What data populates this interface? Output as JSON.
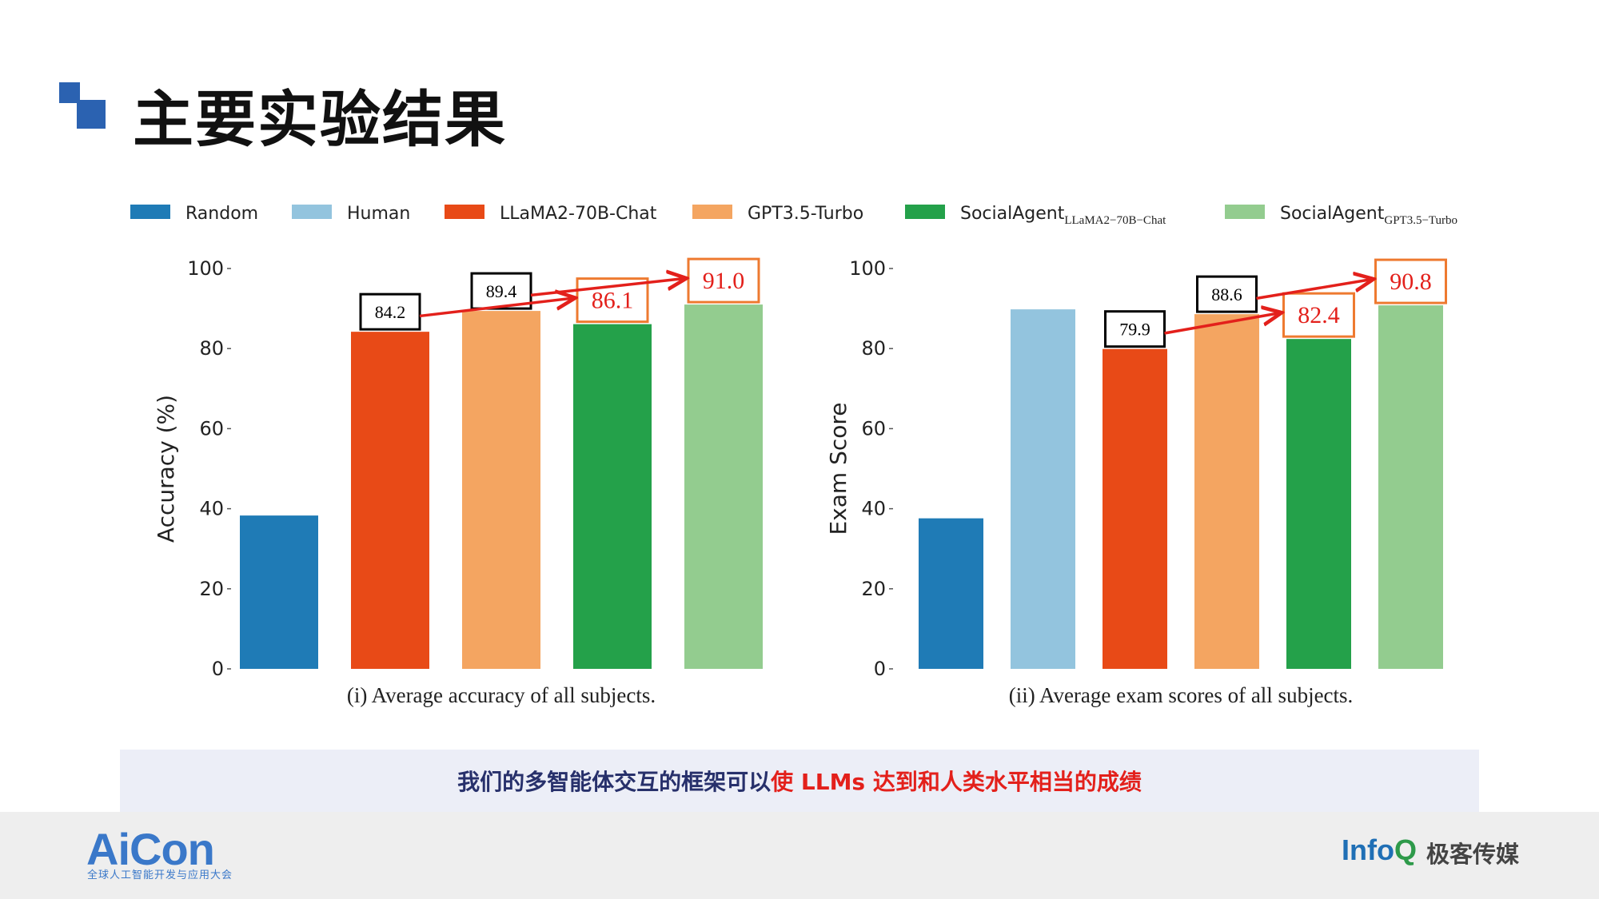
{
  "header": {
    "title": "主要实验结果"
  },
  "legend": [
    {
      "label": "Random",
      "sub": "",
      "color": "#1f7bb6"
    },
    {
      "label": "Human",
      "sub": "",
      "color": "#93c4de"
    },
    {
      "label": "LLaMA2-70B-Chat",
      "sub": "",
      "color": "#e84a17"
    },
    {
      "label": "GPT3.5-Turbo",
      "sub": "",
      "color": "#f4a561"
    },
    {
      "label": "SocialAgent",
      "sub": "LLaMA2−70B−Chat",
      "color": "#24a14a"
    },
    {
      "label": "SocialAgent",
      "sub": "GPT3.5−Turbo",
      "color": "#93cc8f"
    }
  ],
  "chart_data": [
    {
      "type": "bar",
      "title": "",
      "caption": "(i) Average accuracy of all subjects.",
      "ylabel": "Accuracy (%)",
      "xlabel": "",
      "ylim": [
        0,
        100
      ],
      "yticks": [
        "0",
        "20",
        "40",
        "60",
        "80",
        "100"
      ],
      "categories": [
        "Random",
        "LLaMA2-70B-Chat",
        "GPT3.5-Turbo",
        "SocialAgent (LLaMA2-70B-Chat)",
        "SocialAgent (GPT3.5-Turbo)"
      ],
      "values": [
        38.3,
        84.2,
        89.4,
        86.1,
        91.0
      ],
      "colors": [
        "#1f7bb6",
        "#e84a17",
        "#f4a561",
        "#24a14a",
        "#93cc8f"
      ],
      "annotations": [
        {
          "bar": 1,
          "text": "84.2",
          "style": "black"
        },
        {
          "bar": 2,
          "text": "89.4",
          "style": "black"
        },
        {
          "bar": 3,
          "text": "86.1",
          "style": "orange"
        },
        {
          "bar": 4,
          "text": "91.0",
          "style": "orange"
        }
      ],
      "arrows": [
        {
          "from": 1,
          "to": 3
        },
        {
          "from": 2,
          "to": 4
        }
      ]
    },
    {
      "type": "bar",
      "title": "",
      "caption": "(ii) Average exam scores of all subjects.",
      "ylabel": "Exam Score",
      "xlabel": "",
      "ylim": [
        0,
        100
      ],
      "yticks": [
        "0",
        "20",
        "40",
        "60",
        "80",
        "100"
      ],
      "categories": [
        "Random",
        "Human",
        "LLaMA2-70B-Chat",
        "GPT3.5-Turbo",
        "SocialAgent (LLaMA2-70B-Chat)",
        "SocialAgent (GPT3.5-Turbo)"
      ],
      "values": [
        37.6,
        89.8,
        79.9,
        88.6,
        82.4,
        90.8
      ],
      "colors": [
        "#1f7bb6",
        "#93c4de",
        "#e84a17",
        "#f4a561",
        "#24a14a",
        "#93cc8f"
      ],
      "annotations": [
        {
          "bar": 2,
          "text": "79.9",
          "style": "black"
        },
        {
          "bar": 3,
          "text": "88.6",
          "style": "black"
        },
        {
          "bar": 4,
          "text": "82.4",
          "style": "orange"
        },
        {
          "bar": 5,
          "text": "90.8",
          "style": "orange"
        }
      ],
      "arrows": [
        {
          "from": 2,
          "to": 4
        },
        {
          "from": 3,
          "to": 5
        }
      ]
    }
  ],
  "banner": {
    "text_dark": "我们的多智能体交互的框架可以",
    "text_red": "使 LLMs 达到和人类水平相当的成绩"
  },
  "footer": {
    "aicon_logo": "AiCon",
    "aicon_sub": "全球人工智能开发与应用大会",
    "infoq_logo_a": "Info",
    "infoq_logo_b": "Q",
    "infoq_cn": "极客传媒"
  }
}
